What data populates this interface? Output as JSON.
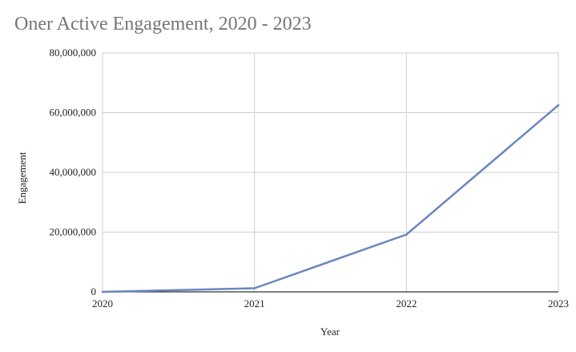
{
  "chart": {
    "title": "Oner Active Engagement, 2020 - 2023"
  },
  "chart_data": {
    "type": "line",
    "title": "Oner Active Engagement, 2020 - 2023",
    "xlabel": "Year",
    "ylabel": "Engagement",
    "x": [
      "2020",
      "2021",
      "2022",
      "2023"
    ],
    "y_tick_labels": [
      "0",
      "20,000,000",
      "40,000,000",
      "60,000,000",
      "80,000,000"
    ],
    "y_ticks": [
      0,
      20000000,
      40000000,
      60000000,
      80000000
    ],
    "ylim": [
      0,
      80000000
    ],
    "grid": true,
    "legend": "none",
    "series": [
      {
        "values": [
          0,
          1200000,
          19200000,
          62500000
        ],
        "color": "#6a86bf"
      }
    ]
  }
}
